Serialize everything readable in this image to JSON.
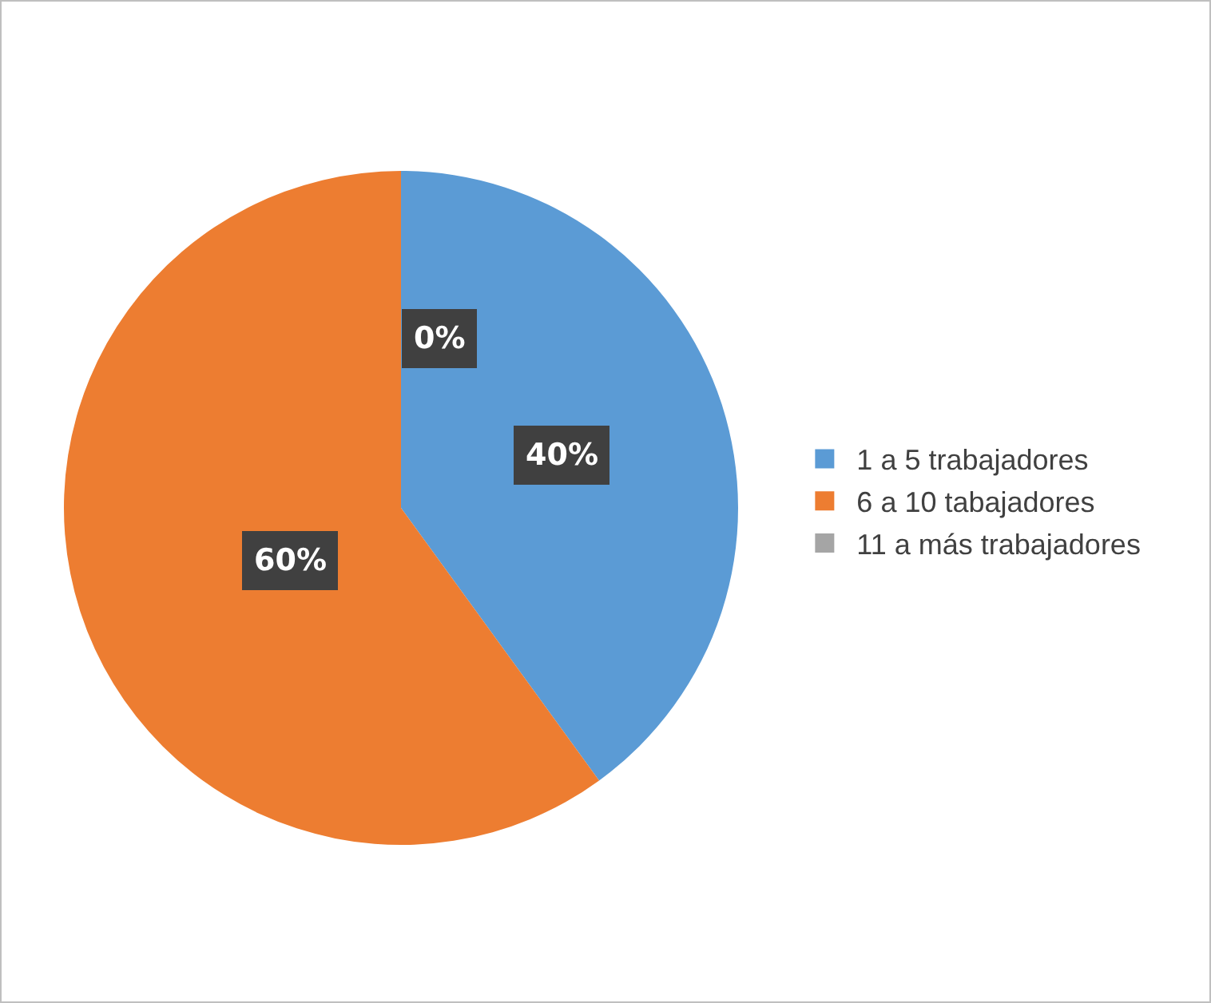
{
  "chart_data": {
    "type": "pie",
    "categories": [
      "1 a 5 trabajadores",
      "6 a 10 tabajadores",
      "11 a más trabajadores"
    ],
    "values": [
      40,
      60,
      0
    ],
    "colors": [
      "#5b9bd5",
      "#ed7d31",
      "#a5a5a5"
    ],
    "value_labels": [
      "40%",
      "60%",
      "0%"
    ],
    "legend": "right"
  }
}
